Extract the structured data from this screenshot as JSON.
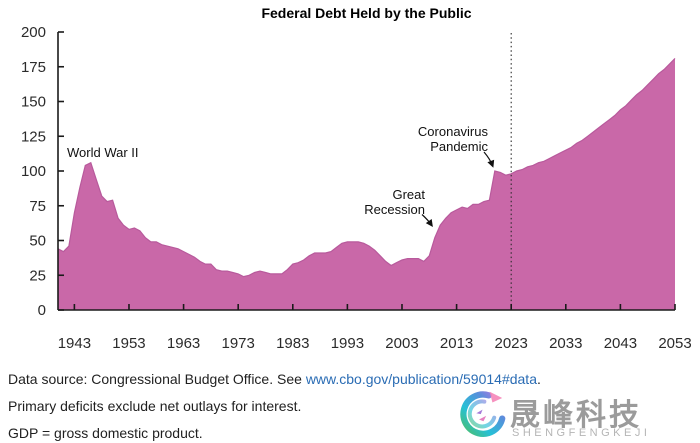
{
  "chart_data": {
    "type": "area",
    "title": "Federal Debt Held by the Public",
    "xlabel": "",
    "ylabel": "",
    "xlim": [
      1940,
      2053
    ],
    "ylim": [
      0,
      200
    ],
    "yticks": [
      0,
      25,
      50,
      75,
      100,
      125,
      150,
      175,
      200
    ],
    "xticks": [
      1943,
      1953,
      1963,
      1973,
      1983,
      1993,
      2003,
      2013,
      2023,
      2033,
      2043,
      2053
    ],
    "projection_divider_x": 2023,
    "grid": false,
    "legend": "none",
    "area_color": "#c968a8",
    "area_edge_color": "#b85a9c",
    "axis_color": "#1a1a1a",
    "tick_label_color": "#2b2b2b",
    "points": [
      [
        1940,
        44
      ],
      [
        1941,
        42
      ],
      [
        1942,
        46
      ],
      [
        1943,
        70
      ],
      [
        1944,
        88
      ],
      [
        1945,
        104
      ],
      [
        1946,
        106
      ],
      [
        1947,
        94
      ],
      [
        1948,
        82
      ],
      [
        1949,
        78
      ],
      [
        1950,
        79
      ],
      [
        1951,
        66
      ],
      [
        1952,
        61
      ],
      [
        1953,
        58
      ],
      [
        1954,
        59
      ],
      [
        1955,
        57
      ],
      [
        1956,
        52
      ],
      [
        1957,
        49
      ],
      [
        1958,
        49
      ],
      [
        1959,
        47
      ],
      [
        1960,
        46
      ],
      [
        1961,
        45
      ],
      [
        1962,
        44
      ],
      [
        1963,
        42
      ],
      [
        1964,
        40
      ],
      [
        1965,
        38
      ],
      [
        1966,
        35
      ],
      [
        1967,
        33
      ],
      [
        1968,
        33
      ],
      [
        1969,
        29
      ],
      [
        1970,
        28
      ],
      [
        1971,
        28
      ],
      [
        1972,
        27
      ],
      [
        1973,
        26
      ],
      [
        1974,
        24
      ],
      [
        1975,
        25
      ],
      [
        1976,
        27
      ],
      [
        1977,
        28
      ],
      [
        1978,
        27
      ],
      [
        1979,
        26
      ],
      [
        1980,
        26
      ],
      [
        1981,
        26
      ],
      [
        1982,
        29
      ],
      [
        1983,
        33
      ],
      [
        1984,
        34
      ],
      [
        1985,
        36
      ],
      [
        1986,
        39
      ],
      [
        1987,
        41
      ],
      [
        1988,
        41
      ],
      [
        1989,
        41
      ],
      [
        1990,
        42
      ],
      [
        1991,
        45
      ],
      [
        1992,
        48
      ],
      [
        1993,
        49
      ],
      [
        1994,
        49
      ],
      [
        1995,
        49
      ],
      [
        1996,
        48
      ],
      [
        1997,
        46
      ],
      [
        1998,
        43
      ],
      [
        1999,
        39
      ],
      [
        2000,
        35
      ],
      [
        2001,
        32
      ],
      [
        2002,
        34
      ],
      [
        2003,
        36
      ],
      [
        2004,
        37
      ],
      [
        2005,
        37
      ],
      [
        2006,
        37
      ],
      [
        2007,
        35
      ],
      [
        2008,
        39
      ],
      [
        2009,
        52
      ],
      [
        2010,
        61
      ],
      [
        2011,
        66
      ],
      [
        2012,
        70
      ],
      [
        2013,
        72
      ],
      [
        2014,
        74
      ],
      [
        2015,
        73
      ],
      [
        2016,
        76
      ],
      [
        2017,
        76
      ],
      [
        2018,
        78
      ],
      [
        2019,
        79
      ],
      [
        2020,
        100
      ],
      [
        2021,
        99
      ],
      [
        2022,
        97
      ],
      [
        2023,
        98
      ],
      [
        2024,
        100
      ],
      [
        2025,
        101
      ],
      [
        2026,
        103
      ],
      [
        2027,
        104
      ],
      [
        2028,
        106
      ],
      [
        2029,
        107
      ],
      [
        2030,
        109
      ],
      [
        2031,
        111
      ],
      [
        2032,
        113
      ],
      [
        2033,
        115
      ],
      [
        2034,
        117
      ],
      [
        2035,
        120
      ],
      [
        2036,
        122
      ],
      [
        2037,
        125
      ],
      [
        2038,
        128
      ],
      [
        2039,
        131
      ],
      [
        2040,
        134
      ],
      [
        2041,
        137
      ],
      [
        2042,
        140
      ],
      [
        2043,
        144
      ],
      [
        2044,
        147
      ],
      [
        2045,
        151
      ],
      [
        2046,
        155
      ],
      [
        2047,
        158
      ],
      [
        2048,
        162
      ],
      [
        2049,
        166
      ],
      [
        2050,
        170
      ],
      [
        2051,
        173
      ],
      [
        2052,
        177
      ],
      [
        2053,
        181
      ]
    ]
  },
  "annotations": {
    "wwii": {
      "label": "World War II"
    },
    "coronavirus": {
      "line1": "Coronavirus",
      "line2": "Pandemic"
    },
    "great_recession": {
      "line1": "Great",
      "line2": "Recession"
    }
  },
  "footer": {
    "line1_prefix": "Data source: Congressional Budget Office. See ",
    "line1_link": "www.cbo.gov/publication/59014#data",
    "line1_suffix": ".",
    "line2": "Primary deficits exclude net outlays for interest.",
    "line3": "GDP = gross domestic product.",
    "link_color": "#2a6cb4"
  },
  "watermark": {
    "name_cn": "晟峰科技",
    "name_en": "SHENGFENGKEJI"
  }
}
